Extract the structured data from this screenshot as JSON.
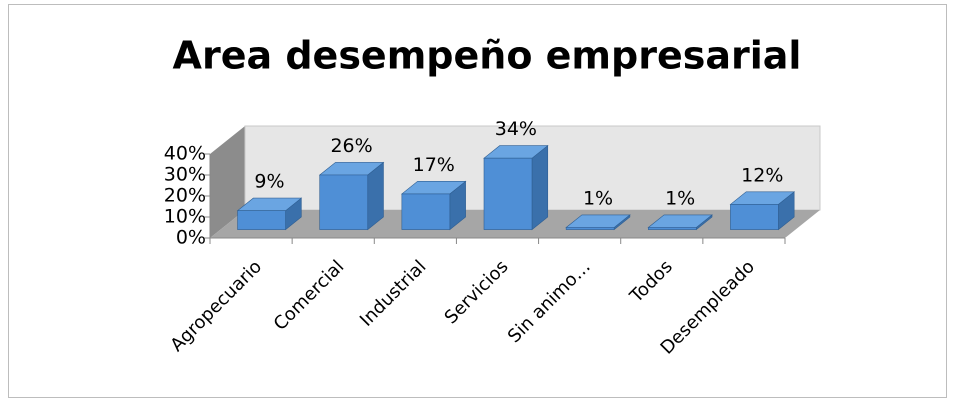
{
  "chart_data": {
    "type": "bar3d",
    "title": "Area desempeño empresarial",
    "categories": [
      "Agropecuario",
      "Comercial",
      "Industrial",
      "Servicios",
      "Sin animo…",
      "Todos",
      "Desempleado"
    ],
    "values": [
      9,
      26,
      17,
      34,
      1,
      1,
      12
    ],
    "value_labels": [
      "9%",
      "26%",
      "17%",
      "34%",
      "1%",
      "1%",
      "12%"
    ],
    "color": "#4f8fd6",
    "ylim": [
      0,
      40
    ],
    "yticks": [
      {
        "value": 0,
        "label": "0%"
      },
      {
        "value": 10,
        "label": "10%"
      },
      {
        "value": 20,
        "label": "20%"
      },
      {
        "value": 30,
        "label": "30%"
      },
      {
        "value": 40,
        "label": "40%"
      }
    ]
  }
}
